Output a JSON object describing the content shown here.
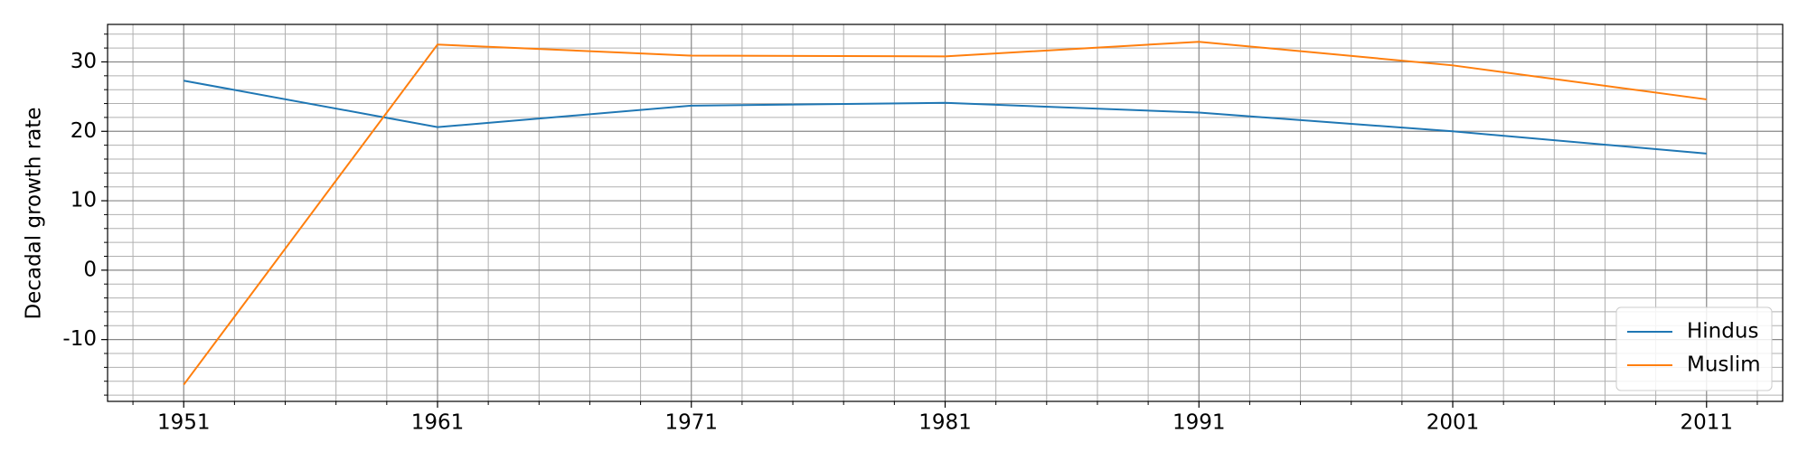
{
  "chart_data": {
    "type": "line",
    "y_label": "Decadal growth rate",
    "x": [
      1951,
      1961,
      1971,
      1981,
      1991,
      2001,
      2011
    ],
    "series": [
      {
        "name": "Hindus",
        "color": "#1f77b4",
        "values": [
          27.3,
          20.6,
          23.7,
          24.1,
          22.7,
          20.0,
          16.8
        ]
      },
      {
        "name": "Muslim",
        "color": "#ff7f0e",
        "values": [
          -16.5,
          32.5,
          30.9,
          30.8,
          32.9,
          29.5,
          24.6
        ]
      }
    ],
    "xlim": [
      1948,
      2014
    ],
    "ylim": [
      -18.9,
      35.4
    ],
    "xticks": [
      1951,
      1961,
      1971,
      1981,
      1991,
      2001,
      2011
    ],
    "yticks": [
      -10,
      0,
      10,
      20,
      30
    ],
    "xminorticks": [
      1949,
      1953,
      1955,
      1957,
      1959,
      1963,
      1965,
      1967,
      1969,
      1973,
      1975,
      1977,
      1979,
      1983,
      1985,
      1987,
      1989,
      1993,
      1995,
      1997,
      1999,
      2003,
      2005,
      2007,
      2009,
      2013
    ],
    "yminorticks": [
      -18,
      -16,
      -14,
      -12,
      -8,
      -6,
      -4,
      -2,
      2,
      4,
      6,
      8,
      12,
      14,
      16,
      18,
      22,
      24,
      26,
      28,
      32,
      34
    ],
    "grid": true,
    "minor_grid": true,
    "legend_position": "lower right"
  }
}
